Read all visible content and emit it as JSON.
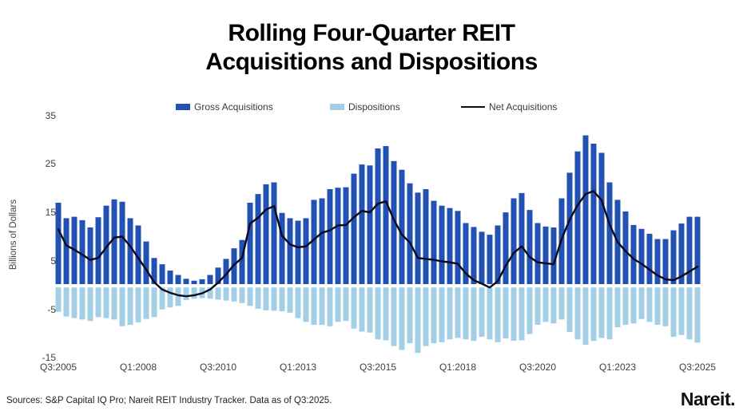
{
  "title": {
    "line1": "Rolling Four-Quarter REIT",
    "line2": "Acquisitions and Dispositions"
  },
  "legend": [
    {
      "label": "Gross Acquisitions",
      "swatch": "bar",
      "color": "#2151b3"
    },
    {
      "label": "Dispositions",
      "swatch": "bar",
      "color": "#a3cfe6"
    },
    {
      "label": "Net Acquisitions",
      "swatch": "line",
      "color": "#0a0a1a"
    }
  ],
  "y_axis": {
    "title": "Billions of Dollars",
    "ticks": [
      35,
      25,
      15,
      5,
      -5,
      -15
    ],
    "min": -15,
    "max": 35
  },
  "x_axis": {
    "tick_labels": [
      "Q3:2005",
      "Q1:2008",
      "Q3:2010",
      "Q1:2013",
      "Q3:2015",
      "Q1:2018",
      "Q3:2020",
      "Q1:2023",
      "Q3:2025"
    ],
    "tick_quarter_indices": [
      0,
      10,
      20,
      30,
      40,
      50,
      60,
      70,
      80
    ]
  },
  "footer": {
    "sources": "Sources: S&P Capital IQ Pro; Nareit REIT Industry Tracker. Data as of Q3:2025.",
    "logo": "Nareit."
  },
  "chart_data": {
    "type": "bar",
    "subtype": "bar-and-line-combo",
    "x_start": "Q3:2005",
    "x_end": "Q3:2025",
    "frequency": "quarterly",
    "n_points": 81,
    "ylabel": "Billions of Dollars",
    "ylim": [
      -15,
      35
    ],
    "grid": false,
    "legend_position": "top",
    "series": [
      {
        "name": "Gross Acquisitions",
        "type": "bar",
        "color": "#2151b3",
        "values": [
          17.0,
          13.8,
          14.1,
          13.4,
          11.9,
          14.0,
          16.4,
          17.7,
          17.2,
          13.8,
          12.3,
          9.0,
          5.6,
          4.3,
          3.0,
          2.1,
          1.3,
          0.9,
          1.2,
          2.1,
          3.6,
          5.4,
          7.6,
          9.3,
          17.0,
          18.8,
          20.8,
          21.2,
          14.9,
          13.8,
          13.3,
          13.8,
          17.6,
          17.9,
          19.8,
          20.1,
          20.2,
          23.0,
          24.9,
          24.7,
          28.2,
          28.7,
          25.6,
          23.8,
          21.0,
          19.1,
          19.8,
          17.4,
          16.4,
          15.9,
          15.3,
          12.8,
          12.0,
          11.0,
          10.4,
          12.3,
          15.0,
          17.9,
          19.0,
          15.5,
          12.8,
          12.1,
          11.9,
          17.9,
          23.2,
          27.6,
          30.9,
          29.2,
          27.3,
          21.2,
          17.6,
          15.2,
          12.4,
          11.6,
          10.6,
          9.5,
          9.5,
          11.3,
          12.7,
          14.1,
          14.1
        ]
      },
      {
        "name": "Dispositions",
        "type": "bar",
        "color": "#a3cfe6",
        "values": [
          -5.5,
          -6.5,
          -6.8,
          -7.1,
          -7.4,
          -6.6,
          -6.8,
          -7.1,
          -8.5,
          -8.2,
          -7.7,
          -7.0,
          -6.6,
          -5.0,
          -4.6,
          -4.3,
          -3.1,
          -2.8,
          -2.7,
          -2.8,
          -3.0,
          -3.2,
          -3.4,
          -3.7,
          -4.3,
          -4.9,
          -5.2,
          -5.3,
          -5.4,
          -5.7,
          -6.8,
          -7.6,
          -8.2,
          -8.2,
          -8.5,
          -7.6,
          -7.4,
          -9.0,
          -9.6,
          -9.8,
          -11.2,
          -11.4,
          -12.6,
          -13.4,
          -12.0,
          -14.0,
          -12.6,
          -12.0,
          -11.8,
          -11.2,
          -10.9,
          -11.2,
          -11.5,
          -10.7,
          -11.2,
          -11.8,
          -11.0,
          -11.5,
          -11.4,
          -10.1,
          -8.2,
          -7.6,
          -7.9,
          -7.1,
          -9.7,
          -11.2,
          -12.3,
          -11.5,
          -10.9,
          -11.2,
          -8.7,
          -8.2,
          -7.9,
          -7.0,
          -7.6,
          -8.2,
          -8.5,
          -10.7,
          -10.3,
          -11.2,
          -11.9
        ]
      },
      {
        "name": "Net Acquisitions",
        "type": "line",
        "color": "#0a0a1a",
        "values": [
          11.5,
          8.2,
          7.3,
          6.3,
          5.2,
          5.6,
          7.8,
          9.8,
          10.0,
          8.0,
          5.6,
          3.2,
          0.6,
          -0.9,
          -1.6,
          -2.1,
          -2.3,
          -2.1,
          -1.7,
          -0.9,
          0.5,
          2.2,
          4.2,
          5.6,
          12.7,
          13.9,
          15.6,
          16.3,
          10.2,
          8.4,
          7.8,
          8.0,
          9.4,
          10.8,
          11.3,
          12.3,
          12.4,
          14.0,
          15.3,
          15.0,
          16.8,
          17.3,
          13.5,
          10.4,
          8.8,
          5.6,
          5.4,
          5.2,
          4.9,
          4.7,
          4.4,
          2.4,
          1.0,
          0.3,
          -0.5,
          0.8,
          4.0,
          6.6,
          8.0,
          5.8,
          4.7,
          4.5,
          4.3,
          9.5,
          13.5,
          16.5,
          18.8,
          19.4,
          17.5,
          12.5,
          8.9,
          7.0,
          5.4,
          4.4,
          3.2,
          2.0,
          1.2,
          1.0,
          1.8,
          2.8,
          3.8
        ]
      }
    ]
  }
}
